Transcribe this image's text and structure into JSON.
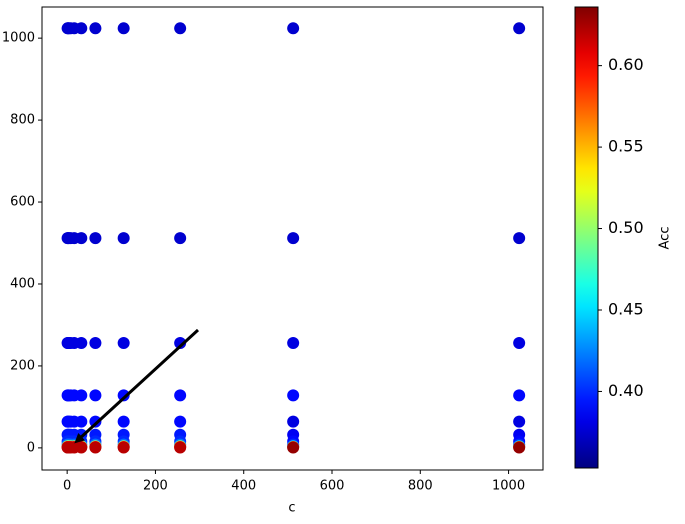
{
  "chart_data": {
    "type": "scatter",
    "xlabel": "c",
    "colorbar_label": "Acc",
    "x": [
      1,
      2,
      4,
      8,
      16,
      32,
      64,
      128,
      256,
      512,
      1024,
      1,
      2,
      4,
      8,
      16,
      32,
      64,
      128,
      256,
      512,
      1024,
      1,
      2,
      4,
      8,
      16,
      32,
      64,
      128,
      256,
      512,
      1024,
      1,
      2,
      4,
      8,
      16,
      32,
      64,
      128,
      256,
      512,
      1024,
      1,
      2,
      4,
      8,
      16,
      32,
      64,
      128,
      256,
      512,
      1024,
      1,
      2,
      4,
      8,
      16,
      32,
      64,
      128,
      256,
      512,
      1024,
      1,
      2,
      4,
      8,
      16,
      32,
      64,
      128,
      256,
      512,
      1024,
      1,
      2,
      4,
      8,
      16,
      32,
      64,
      128,
      256,
      512,
      1024,
      1,
      2,
      4,
      8,
      16,
      32,
      64,
      128,
      256,
      512,
      1024,
      1,
      2,
      4,
      8,
      16,
      32,
      64,
      128,
      256,
      512,
      1024,
      1,
      2,
      4,
      8,
      16,
      32,
      64,
      128,
      256,
      512,
      1024
    ],
    "y": [
      1024,
      1024,
      1024,
      1024,
      1024,
      1024,
      1024,
      1024,
      1024,
      1024,
      1024,
      512,
      512,
      512,
      512,
      512,
      512,
      512,
      512,
      512,
      512,
      512,
      256,
      256,
      256,
      256,
      256,
      256,
      256,
      256,
      256,
      256,
      256,
      128,
      128,
      128,
      128,
      128,
      128,
      128,
      128,
      128,
      128,
      128,
      64,
      64,
      64,
      64,
      64,
      64,
      64,
      64,
      64,
      64,
      64,
      32,
      32,
      32,
      32,
      32,
      32,
      32,
      32,
      32,
      32,
      32,
      16,
      16,
      16,
      16,
      16,
      16,
      16,
      16,
      16,
      16,
      16,
      8,
      8,
      8,
      8,
      8,
      8,
      8,
      8,
      8,
      8,
      8,
      4,
      4,
      4,
      4,
      4,
      4,
      4,
      4,
      4,
      4,
      4,
      2,
      2,
      2,
      2,
      2,
      2,
      2,
      2,
      2,
      2,
      2,
      1,
      1,
      1,
      1,
      1,
      1,
      1,
      1,
      1,
      1,
      1
    ],
    "color_values": [
      0.375,
      0.375,
      0.375,
      0.375,
      0.375,
      0.375,
      0.375,
      0.375,
      0.375,
      0.375,
      0.375,
      0.375,
      0.375,
      0.375,
      0.375,
      0.375,
      0.375,
      0.375,
      0.375,
      0.375,
      0.375,
      0.375,
      0.38,
      0.38,
      0.38,
      0.38,
      0.38,
      0.38,
      0.38,
      0.38,
      0.38,
      0.38,
      0.38,
      0.39,
      0.39,
      0.39,
      0.39,
      0.39,
      0.39,
      0.39,
      0.39,
      0.39,
      0.39,
      0.39,
      0.39,
      0.39,
      0.39,
      0.39,
      0.39,
      0.39,
      0.39,
      0.39,
      0.39,
      0.38,
      0.38,
      0.395,
      0.395,
      0.395,
      0.395,
      0.395,
      0.395,
      0.395,
      0.395,
      0.395,
      0.385,
      0.385,
      0.4,
      0.4,
      0.4,
      0.4,
      0.4,
      0.4,
      0.4,
      0.4,
      0.4,
      0.39,
      0.39,
      0.42,
      0.42,
      0.42,
      0.42,
      0.42,
      0.42,
      0.42,
      0.42,
      0.42,
      0.4,
      0.4,
      0.5,
      0.5,
      0.5,
      0.5,
      0.5,
      0.5,
      0.5,
      0.5,
      0.5,
      0.45,
      0.45,
      0.6,
      0.6,
      0.6,
      0.6,
      0.6,
      0.6,
      0.6,
      0.6,
      0.6,
      0.58,
      0.58,
      0.62,
      0.62,
      0.62,
      0.62,
      0.62,
      0.62,
      0.62,
      0.62,
      0.62,
      0.63,
      0.63
    ],
    "xlim": [
      -57,
      1078
    ],
    "xticks": [
      0,
      200,
      400,
      600,
      800,
      1000
    ],
    "ylim": [
      -54,
      1076
    ],
    "yticks": [
      0,
      200,
      400,
      600,
      800,
      1000
    ],
    "clim": [
      0.353,
      0.636
    ],
    "cticks": [
      {
        "value": 0.4,
        "label": "0.40"
      },
      {
        "value": 0.45,
        "label": "0.45"
      },
      {
        "value": 0.5,
        "label": "0.50"
      },
      {
        "value": 0.55,
        "label": "0.55"
      },
      {
        "value": 0.6,
        "label": "0.60"
      }
    ],
    "colormap": "jet"
  }
}
